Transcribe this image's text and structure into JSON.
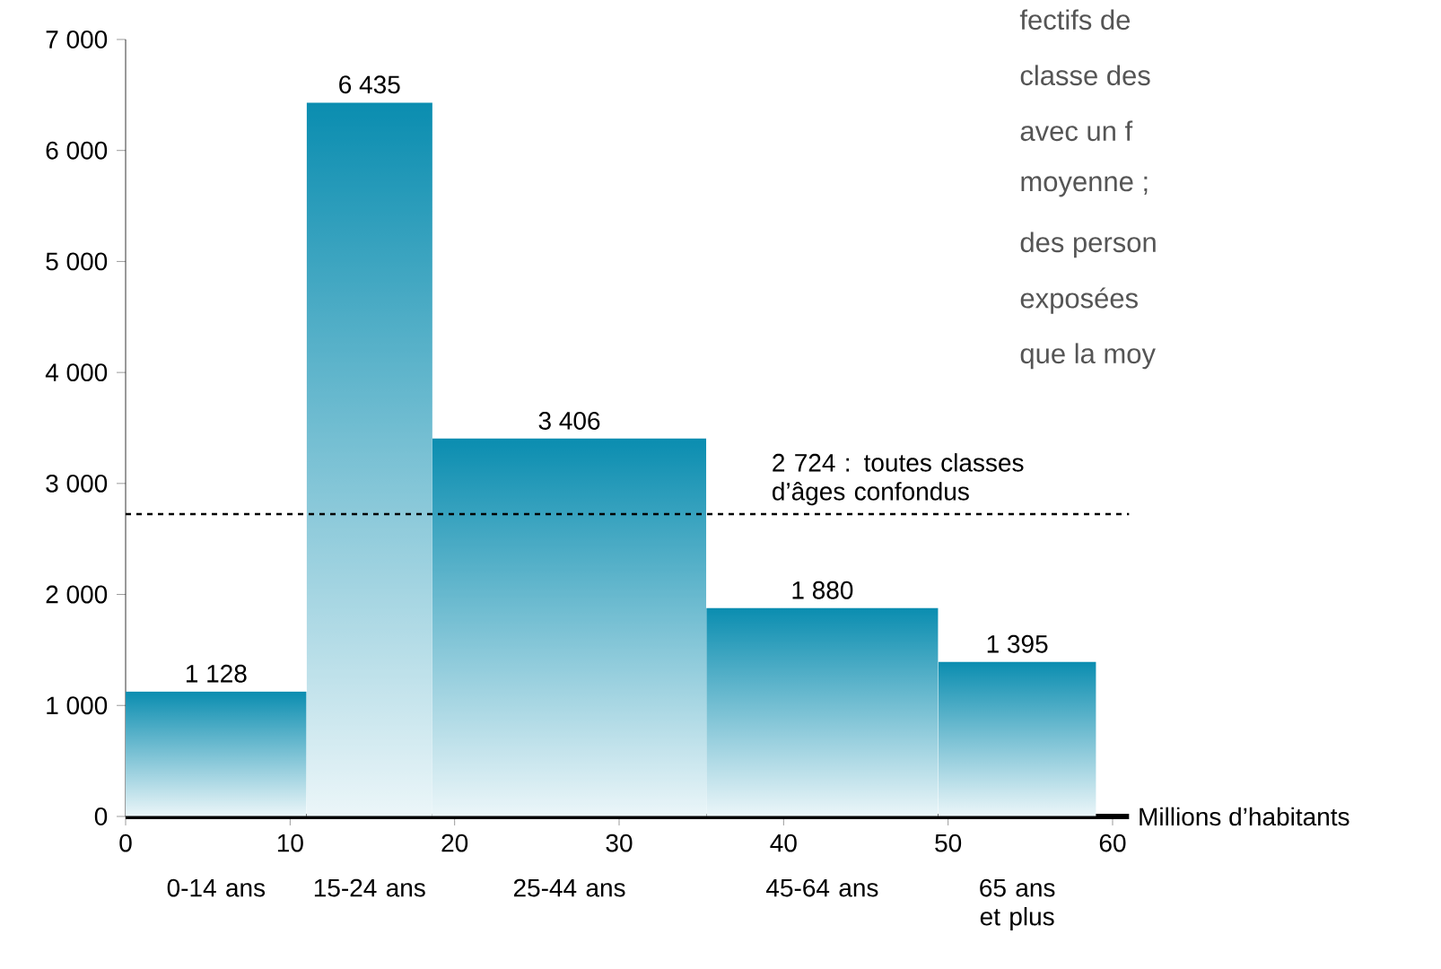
{
  "chart_data": {
    "type": "histogram",
    "xlabel": "Millions d’habitants",
    "bins": [
      0,
      11.0,
      18.65,
      35.3,
      49.4,
      59.0
    ],
    "values": [
      1128,
      6435,
      3406,
      1880,
      1395
    ],
    "categories": [
      "0-14 ans",
      "15-24 ans",
      "25-44 ans",
      "45-64 ans",
      "65 ans et plus"
    ],
    "color": "#0a8db0",
    "data_labels": true,
    "xlim": [
      0,
      61
    ],
    "xticks": [
      0,
      10,
      20,
      30,
      40,
      50,
      60
    ],
    "ylim": [
      0,
      7000
    ],
    "yticks": [
      0,
      {
        "value": 1000,
        "label": "1 000"
      },
      {
        "value": 2000,
        "label": "2 000"
      },
      {
        "value": 3000,
        "label": "3 000"
      },
      {
        "value": 4000,
        "label": "4 000"
      },
      {
        "value": 5000,
        "label": "5 000"
      },
      {
        "value": 6000,
        "label": "6 000"
      },
      {
        "value": 7000,
        "label": "7 000"
      }
    ],
    "grid": false,
    "ref_lines": [
      {
        "axis": "y",
        "value": 2724,
        "label": "2 724 : toutes classes d’âges confondus",
        "line_style": "dashed",
        "color": "#000000"
      }
    ],
    "annotations": [
      "fectifs de",
      "classe des",
      "avec un f",
      "moyenne ;",
      "des person",
      "exposées",
      "que la moy"
    ]
  }
}
